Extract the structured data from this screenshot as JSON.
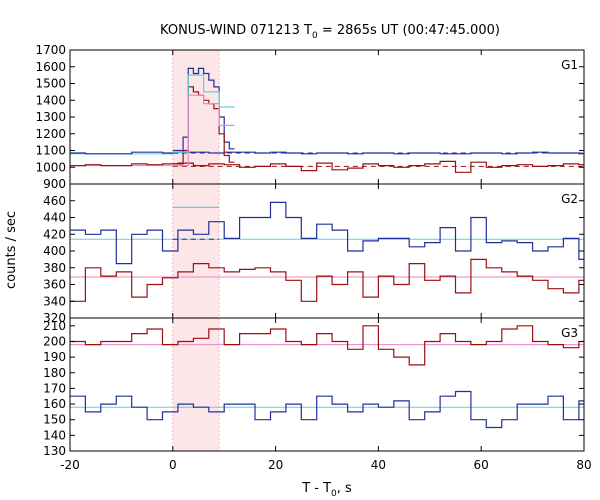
{
  "chart_data": {
    "type": "line",
    "title": {
      "main": "KONUS-WIND 071213 T",
      "sub": "0",
      "rest": " = 2865s UT (00:47:45.000)"
    },
    "xlabel": {
      "main": "T - T",
      "sub": "0",
      "rest": ", s"
    },
    "ylabel": "counts / sec",
    "xlim": [
      -20,
      80
    ],
    "x_ticks": [
      "-20",
      "0",
      "20",
      "40",
      "60",
      "80"
    ],
    "highlight_interval": [
      0,
      9
    ],
    "colors": {
      "dark_blue": "#1f2f9c",
      "dark_red": "#9a1010",
      "light_cyan": "#5fd0e0",
      "light_pink": "#e887c8",
      "highlight": "#fde6e8"
    },
    "panels": [
      {
        "label": "G1",
        "ylim": [
          900,
          1700
        ],
        "y_ticks": [
          "900",
          "1000",
          "1100",
          "1200",
          "1300",
          "1400",
          "1500",
          "1600",
          "1700"
        ],
        "bin_start": -20,
        "bin_width": 3,
        "series": [
          {
            "color": "dark_blue",
            "values": [
              1085,
              1080,
              1080,
              1080,
              1090,
              1090,
              1085,
              1090,
              1090,
              1085,
              1090,
              1090,
              1085,
              1090,
              1085,
              1080,
              1085,
              1085,
              1080,
              1085,
              1085,
              1080,
              1085,
              1085,
              1080,
              1080,
              1085,
              1085,
              1080,
              1085,
              1090,
              1085,
              1085,
              1080
            ]
          },
          {
            "color": "dark_red",
            "values": [
              1010,
              1015,
              1010,
              1010,
              1020,
              1015,
              1020,
              1025,
              1010,
              1020,
              1015,
              1000,
              1005,
              1020,
              1005,
              980,
              1025,
              985,
              995,
              1020,
              1010,
              1000,
              1010,
              1020,
              1035,
              970,
              1030,
              1000,
              1010,
              1015,
              1005,
              1010,
              1020,
              1015
            ]
          }
        ],
        "burst_series": [
          {
            "color": "dark_blue",
            "x": [
              0,
              2,
              3,
              4,
              5,
              6,
              7,
              8,
              9,
              10,
              11,
              12
            ],
            "values": [
              1100,
              1180,
              1590,
              1560,
              1590,
              1560,
              1520,
              1480,
              1300,
              1150,
              1110,
              1090
            ]
          },
          {
            "color": "dark_red",
            "x": [
              0,
              2,
              3,
              4,
              5,
              6,
              7,
              8,
              9,
              10,
              11,
              12
            ],
            "values": [
              1020,
              1100,
              1480,
              1450,
              1430,
              1400,
              1380,
              1350,
              1200,
              1070,
              1030,
              1020
            ]
          },
          {
            "color": "light_cyan",
            "x": [
              0,
              3,
              5,
              6,
              8,
              9,
              12
            ],
            "values": [
              1090,
              1550,
              1550,
              1450,
              1450,
              1360,
              1090
            ]
          },
          {
            "color": "light_pink",
            "x": [
              0,
              3,
              5,
              6,
              8,
              9,
              12
            ],
            "values": [
              1010,
              1430,
              1430,
              1380,
              1380,
              1250,
              1010
            ]
          }
        ],
        "bg_levels": [
          {
            "color": "light_cyan",
            "value": 1080,
            "interval": [
              -20,
              0
            ]
          },
          {
            "color": "dark_blue",
            "value": 1085,
            "interval": [
              0,
              80
            ],
            "dashed": true
          },
          {
            "color": "light_pink",
            "value": 1010,
            "interval": [
              -20,
              0
            ]
          },
          {
            "color": "dark_red",
            "value": 1005,
            "interval": [
              0,
              80
            ],
            "dashed": true
          }
        ]
      },
      {
        "label": "G2",
        "ylim": [
          320,
          480
        ],
        "y_ticks": [
          "320",
          "340",
          "360",
          "380",
          "400",
          "420",
          "440",
          "460"
        ],
        "bin_start": -20,
        "bin_width": 3,
        "series": [
          {
            "color": "dark_blue",
            "values": [
              425,
              420,
              425,
              385,
              420,
              425,
              400,
              425,
              420,
              435,
              415,
              440,
              440,
              458,
              440,
              415,
              432,
              425,
              400,
              412,
              415,
              415,
              405,
              410,
              428,
              400,
              440,
              410,
              412,
              410,
              400,
              405,
              415,
              390
            ]
          },
          {
            "color": "dark_red",
            "values": [
              340,
              380,
              370,
              375,
              345,
              360,
              368,
              375,
              385,
              380,
              375,
              378,
              380,
              375,
              365,
              340,
              370,
              360,
              375,
              345,
              370,
              360,
              385,
              365,
              370,
              350,
              390,
              380,
              375,
              370,
              365,
              355,
              350,
              365
            ]
          }
        ],
        "burst_series": [
          {
            "color": "light_cyan",
            "x": [
              0,
              3,
              6,
              9
            ],
            "values": [
              452,
              452,
              452,
              414
            ]
          }
        ],
        "bg_levels": [
          {
            "color": "light_cyan",
            "value": 414,
            "interval": [
              -20,
              80
            ]
          },
          {
            "color": "dark_blue",
            "value": 414,
            "interval": [
              0,
              9
            ],
            "dashed": true
          },
          {
            "color": "light_pink",
            "value": 369,
            "interval": [
              -20,
              80
            ]
          }
        ]
      },
      {
        "label": "G3",
        "ylim": [
          130,
          215
        ],
        "y_ticks": [
          "130",
          "140",
          "150",
          "160",
          "170",
          "180",
          "190",
          "200",
          "210"
        ],
        "bin_start": -20,
        "bin_width": 3,
        "series": [
          {
            "color": "dark_red",
            "values": [
              200,
              198,
              200,
              200,
              205,
              208,
              198,
              200,
              202,
              208,
              198,
              205,
              205,
              208,
              200,
              198,
              205,
              200,
              195,
              210,
              195,
              190,
              185,
              200,
              205,
              200,
              198,
              200,
              208,
              210,
              200,
              198,
              196,
              200
            ]
          },
          {
            "color": "dark_blue",
            "values": [
              165,
              155,
              160,
              165,
              158,
              150,
              155,
              160,
              158,
              155,
              160,
              160,
              150,
              155,
              160,
              150,
              165,
              160,
              155,
              160,
              158,
              162,
              150,
              155,
              165,
              168,
              150,
              145,
              150,
              160,
              160,
              165,
              150,
              162
            ]
          }
        ],
        "burst_series": [],
        "bg_levels": [
          {
            "color": "light_pink",
            "value": 198,
            "interval": [
              -20,
              80
            ]
          },
          {
            "color": "light_cyan",
            "value": 158,
            "interval": [
              -20,
              80
            ]
          }
        ]
      }
    ]
  }
}
